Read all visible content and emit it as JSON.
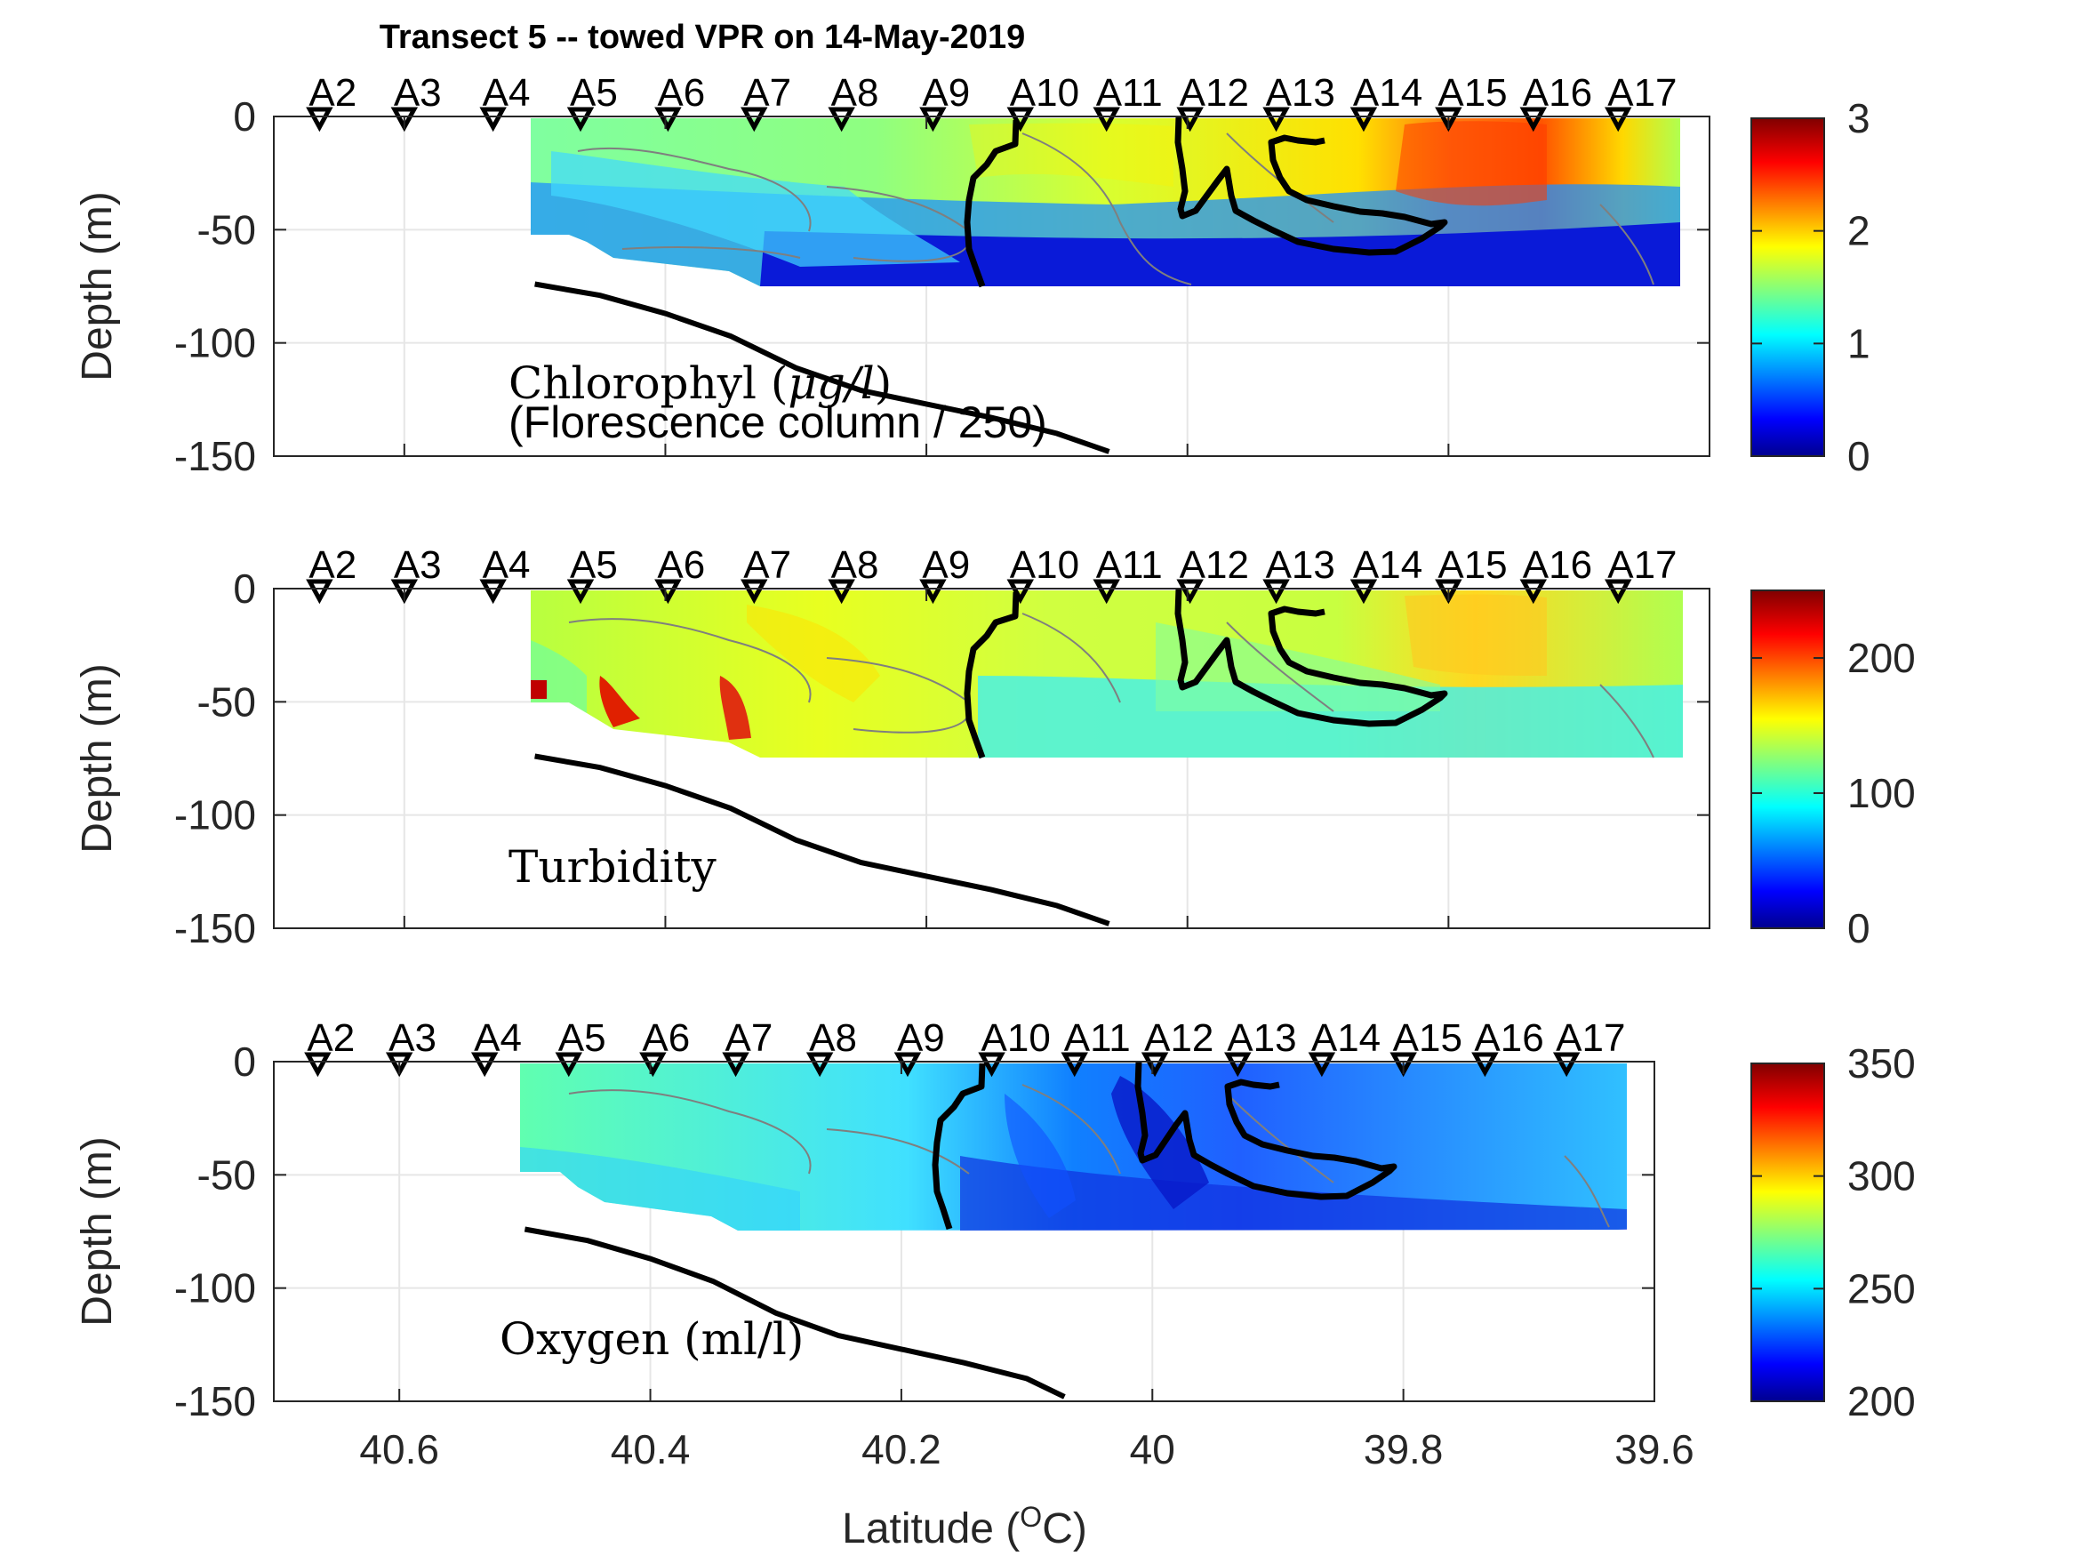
{
  "title": "Transect 5 -- towed VPR on 14-May-2019",
  "xlabel": "Latitude (",
  "xlabel_sup": "O",
  "xlabel_unit": "C)",
  "ylabel": "Depth (m)",
  "x_ticks": [
    "40.6",
    "40.4",
    "40.2",
    "40",
    "39.8",
    "39.6"
  ],
  "y_ticks": [
    "0",
    "-50",
    "-100",
    "-150"
  ],
  "stations": [
    "A2",
    "A3",
    "A4",
    "A5",
    "A6",
    "A7",
    "A8",
    "A9",
    "A10",
    "A11",
    "A12",
    "A13",
    "A14",
    "A15",
    "A16",
    "A17"
  ],
  "station_lat": [
    40.665,
    40.6,
    40.532,
    40.465,
    40.398,
    40.332,
    40.265,
    40.195,
    40.128,
    40.062,
    39.998,
    39.932,
    39.865,
    39.8,
    39.735,
    39.67
  ],
  "colors": {
    "bathymetry": "#000000",
    "contour": "#7f7f7f",
    "frame": "#262626",
    "grid": "#e6e6e6"
  },
  "chart_data": [
    {
      "type": "heatmap",
      "label_line1": "Chlorophyl (",
      "label_mu": "μg/l",
      "label_close": ")",
      "label_line2": "(Florescence column / 250)",
      "xlim": [
        40.7,
        39.6
      ],
      "ylim": [
        -150,
        0
      ],
      "colorbar_ticks": [
        "0",
        "1",
        "2",
        "3"
      ],
      "clim": [
        0,
        3
      ],
      "colormap": "jet",
      "bathymetry": {
        "lat": [
          40.5,
          40.45,
          40.4,
          40.35,
          40.3,
          40.25,
          40.2,
          40.15,
          40.1,
          40.06
        ],
        "depth": [
          -74,
          -79,
          -87,
          -97,
          -111,
          -121,
          -127,
          -133,
          -140,
          -148
        ]
      }
    },
    {
      "type": "heatmap",
      "label_line1": "Turbidity",
      "xlim": [
        40.7,
        39.6
      ],
      "ylim": [
        -150,
        0
      ],
      "colorbar_ticks": [
        "0",
        "100",
        "200"
      ],
      "clim": [
        0,
        250
      ],
      "colormap": "jet",
      "bathymetry": {
        "lat": [
          40.5,
          40.45,
          40.4,
          40.35,
          40.3,
          40.25,
          40.2,
          40.15,
          40.1,
          40.06
        ],
        "depth": [
          -74,
          -79,
          -87,
          -97,
          -111,
          -121,
          -127,
          -133,
          -140,
          -148
        ]
      }
    },
    {
      "type": "heatmap",
      "label_line1": "Oxygen (ml/l)",
      "xlim": [
        40.7,
        39.6
      ],
      "ylim": [
        -150,
        0
      ],
      "colorbar_ticks": [
        "200",
        "250",
        "300",
        "350"
      ],
      "clim": [
        200,
        350
      ],
      "colormap": "jet",
      "bathymetry": {
        "lat": [
          40.5,
          40.45,
          40.4,
          40.35,
          40.3,
          40.25,
          40.2,
          40.15,
          40.1,
          40.07
        ],
        "depth": [
          -74,
          -79,
          -87,
          -97,
          -111,
          -121,
          -127,
          -133,
          -140,
          -148
        ]
      }
    }
  ]
}
